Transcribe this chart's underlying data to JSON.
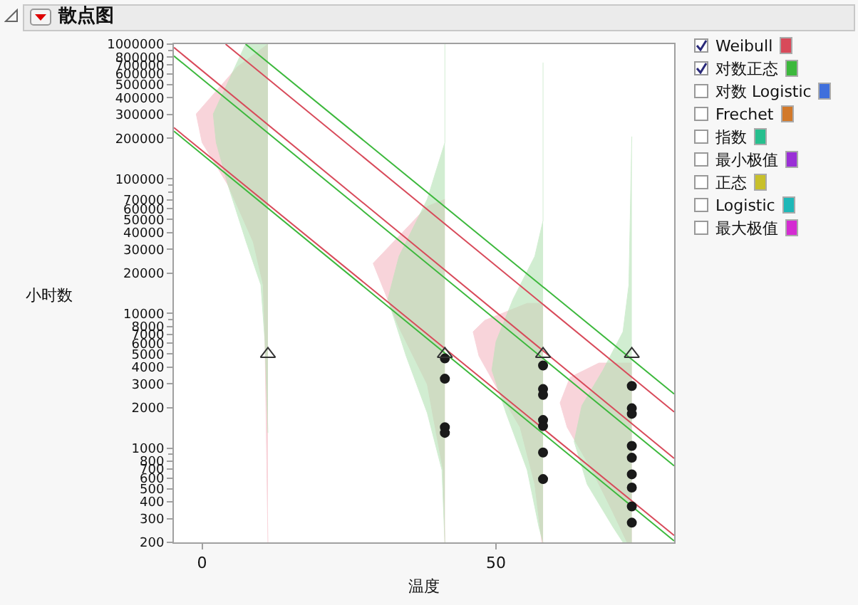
{
  "chart_data": {
    "type": "scatter",
    "title": "散点图",
    "xlabel": "温度",
    "ylabel": "小时数",
    "xlim": [
      -4.8,
      80.3
    ],
    "xticks": [
      0,
      50
    ],
    "annotations": [
      "对数 Logistic",
      "Frechet",
      "指数",
      "最小极值",
      "正态",
      "Logistic",
      "最大极值"
    ],
    "ylim": [
      200,
      1000000
    ],
    "log": "y",
    "grid": false,
    "legend": "right",
    "yticks": [
      200,
      300,
      400,
      500,
      600,
      700,
      800,
      {
        "value": 900,
        "label": null
      },
      1000,
      2000,
      3000,
      4000,
      5000,
      6000,
      7000,
      8000,
      {
        "value": 9000,
        "label": null
      },
      10000,
      20000,
      30000,
      40000,
      50000,
      60000,
      70000,
      {
        "value": 80000,
        "label": null
      },
      {
        "value": 90000,
        "label": null
      },
      100000,
      200000,
      300000,
      400000,
      500000,
      600000,
      700000,
      800000,
      {
        "value": 900000,
        "label": null
      },
      1000000
    ],
    "series": [
      {
        "type": "area",
        "color": "#f4b8c2",
        "x": [
          11.2,
          6,
          -1,
          0,
          4.4,
          8.7,
          10.4,
          10.7,
          11.2
        ],
        "values": [
          1000000,
          678000,
          303000,
          186000,
          90000,
          34000,
          16300,
          6200,
          200
        ]
      },
      {
        "type": "area",
        "color": "#b4e2b4",
        "x": [
          11.2,
          7.4,
          1.9,
          2.4,
          4.4,
          7.5,
          10,
          10.7,
          11.2
        ],
        "values": [
          1000000,
          1000000,
          303000,
          186000,
          90000,
          34000,
          16300,
          6200,
          1300
        ]
      },
      {
        "type": "area",
        "color": "#f4b8c2",
        "x": [
          41.3,
          38.3,
          29.1,
          33.5,
          38.3,
          41,
          41.3
        ],
        "values": [
          70500,
          62400,
          23600,
          7870,
          2980,
          690,
          200
        ]
      },
      {
        "type": "area",
        "color": "#b4e2b4",
        "x": [
          41.3,
          41.3,
          38.3,
          33.5,
          31.6,
          34.7,
          38.3,
          40.8,
          41.3
        ],
        "values": [
          1000000,
          186000,
          70500,
          26600,
          12800,
          4840,
          1830,
          690,
          200
        ]
      },
      {
        "type": "area",
        "color": "#f4b8c2",
        "x": [
          58,
          55.3,
          48.1,
          46.1,
          47.1,
          50.5,
          54.1,
          56.6,
          57.8,
          58
        ],
        "values": [
          11900,
          11900,
          8900,
          7320,
          4840,
          2630,
          1430,
          540,
          200,
          200
        ]
      },
      {
        "type": "area",
        "color": "#b4e2b4",
        "x": [
          58,
          58,
          56.6,
          52.9,
          50,
          49.3,
          51.7,
          55.3,
          57.3,
          58
        ],
        "values": [
          730000,
          48900,
          26600,
          12800,
          6180,
          3800,
          1830,
          690,
          260,
          200
        ]
      },
      {
        "type": "area",
        "color": "#f4b8c2",
        "x": [
          73.1,
          67.5,
          62.6,
          60.9,
          62.1,
          66.3,
          69.9,
          72.3,
          73.1
        ],
        "values": [
          4290,
          4290,
          3360,
          2170,
          1430,
          690,
          333,
          200,
          200
        ]
      },
      {
        "type": "area",
        "color": "#b4e2b4",
        "x": [
          73.1,
          72.6,
          71.6,
          68.2,
          64.6,
          63.3,
          65.5,
          69.9,
          71.6,
          73.1
        ],
        "values": [
          206000,
          16300,
          7320,
          3800,
          2070,
          1120,
          540,
          260,
          200,
          200
        ]
      },
      {
        "type": "line",
        "name": "Weibull",
        "color": "#d84a5a",
        "x": [
          -4.8,
          80.3
        ],
        "values": [
          240000,
          225
        ]
      },
      {
        "type": "line",
        "color": "#d84a5a",
        "x": [
          -4.8,
          80.3
        ],
        "values": [
          945000,
          840
        ]
      },
      {
        "type": "line",
        "color": "#d84a5a",
        "x": [
          4.0,
          80.3
        ],
        "values": [
          1000000,
          1860
        ]
      },
      {
        "type": "line",
        "name": "对数正态",
        "color": "#3cb83c",
        "x": [
          -4.8,
          80.3
        ],
        "values": [
          226000,
          205
        ]
      },
      {
        "type": "line",
        "color": "#3cb83c",
        "x": [
          -4.8,
          80.3
        ],
        "values": [
          817000,
          740
        ]
      },
      {
        "type": "line",
        "color": "#3cb83c",
        "x": [
          7.4,
          80.3
        ],
        "values": [
          1000000,
          2530
        ]
      },
      {
        "marker": "circle",
        "color": "#1a1a1a",
        "x": [
          41.3,
          41.3,
          41.3,
          41.3,
          58,
          58,
          58,
          58,
          58,
          58,
          58,
          73.1,
          73.1,
          73.1,
          73.1,
          73.1,
          73.1,
          73.1,
          73.1,
          73.1
        ],
        "values": [
          4640,
          3280,
          1430,
          1300,
          4110,
          2750,
          2490,
          1620,
          1460,
          930,
          590,
          2900,
          1980,
          1800,
          1040,
          850,
          640,
          510,
          370,
          280
        ]
      },
      {
        "marker": "triangle",
        "color": "#333333",
        "x": [
          11.2,
          41.3,
          58,
          73.1
        ],
        "values": [
          5000,
          5000,
          5000,
          5000
        ]
      }
    ]
  }
}
